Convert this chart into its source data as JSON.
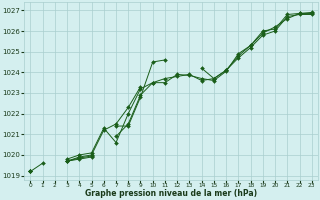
{
  "xlabel": "Graphe pression niveau de la mer (hPa)",
  "xlim": [
    -0.5,
    23.5
  ],
  "ylim": [
    1018.8,
    1027.4
  ],
  "yticks": [
    1019,
    1020,
    1021,
    1022,
    1023,
    1024,
    1025,
    1026,
    1027
  ],
  "xticks": [
    0,
    1,
    2,
    3,
    4,
    5,
    6,
    7,
    8,
    9,
    10,
    11,
    12,
    13,
    14,
    15,
    16,
    17,
    18,
    19,
    20,
    21,
    22,
    23
  ],
  "background_color": "#d4efef",
  "grid_color": "#aacfcf",
  "line_color": "#1a5e1a",
  "series": [
    [
      1019.2,
      1019.6,
      null,
      1019.7,
      1019.8,
      1019.9,
      null,
      1020.9,
      1021.5,
      1022.9,
      1023.5,
      1023.7,
      1023.8,
      1023.9,
      1023.6,
      1023.7,
      1024.1,
      1024.7,
      1025.2,
      1025.8,
      1026.0,
      1026.7,
      1026.8,
      1026.8
    ],
    [
      1019.2,
      null,
      null,
      1019.7,
      1019.9,
      1020.0,
      1021.2,
      1021.5,
      1022.3,
      1023.3,
      null,
      null,
      null,
      null,
      null,
      null,
      null,
      null,
      null,
      null,
      null,
      null,
      null,
      null
    ],
    [
      1019.2,
      null,
      null,
      1019.8,
      1020.0,
      1020.1,
      1021.3,
      1020.6,
      1022.0,
      1023.2,
      1023.5,
      1023.5,
      1023.9,
      1023.85,
      1023.7,
      1023.6,
      1024.05,
      1024.9,
      1025.3,
      1026.0,
      1026.1,
      1026.8,
      1026.85,
      1026.9
    ],
    [
      1019.2,
      null,
      null,
      1019.7,
      1019.85,
      1019.95,
      null,
      1021.4,
      1021.4,
      1022.8,
      1024.5,
      1024.6,
      null,
      null,
      1024.2,
      1023.7,
      1024.1,
      1024.8,
      1025.3,
      1025.9,
      1026.2,
      1026.6,
      1026.85,
      1026.85
    ]
  ]
}
